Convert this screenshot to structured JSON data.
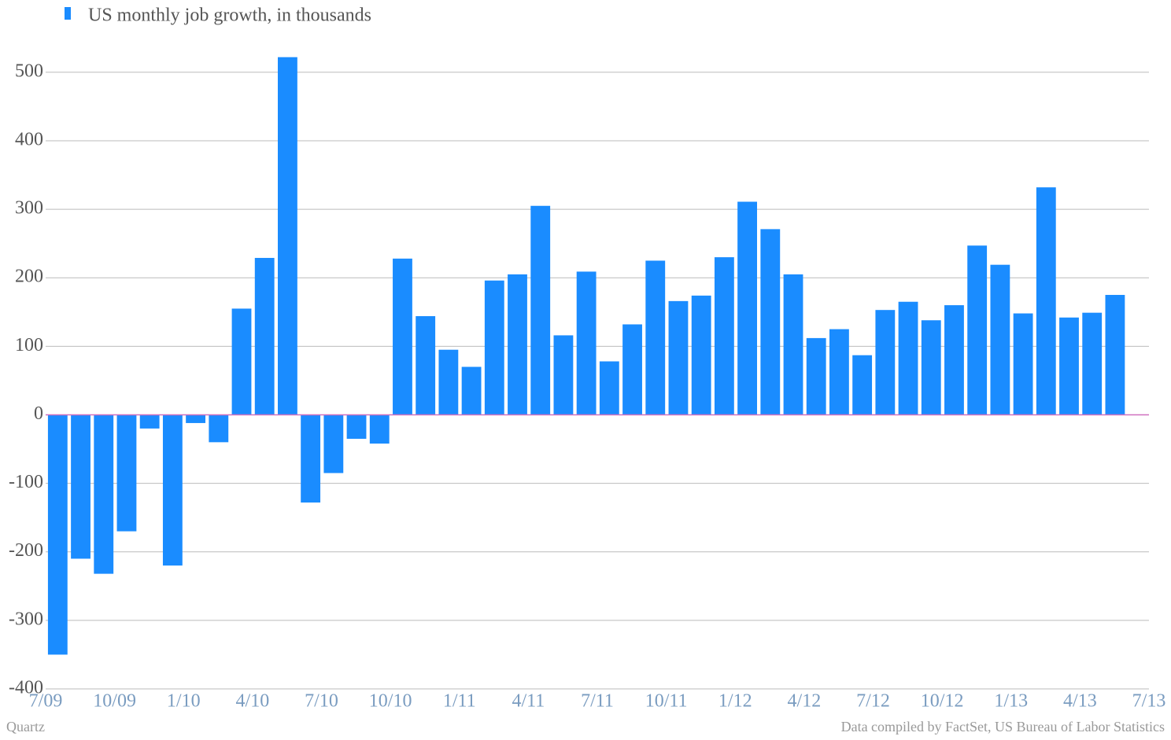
{
  "chart_data": {
    "type": "bar",
    "credit": "Quartz",
    "source": "Data compiled by FactSet, US Bureau of Labor Statistics",
    "x": [
      0,
      1,
      2,
      3,
      4,
      5,
      6,
      7,
      8,
      9,
      10,
      11,
      12,
      13,
      14,
      15,
      16,
      17,
      18,
      19,
      20,
      21,
      22,
      23,
      24,
      25,
      26,
      27,
      28,
      29,
      30,
      31,
      32,
      33,
      34,
      35,
      36,
      37,
      38,
      39,
      40,
      41,
      42,
      43,
      44,
      45,
      46
    ],
    "series": [
      {
        "name": "US monthly job growth, in thousands",
        "color": "#1a8cff",
        "values": [
          -350,
          -210,
          -232,
          -170,
          -20,
          -220,
          -12,
          -40,
          155,
          229,
          522,
          -128,
          -85,
          -35,
          -42,
          228,
          144,
          95,
          70,
          196,
          205,
          305,
          116,
          209,
          78,
          132,
          225,
          166,
          174,
          230,
          311,
          271,
          205,
          112,
          125,
          87,
          153,
          165,
          138,
          160,
          247,
          219,
          148,
          332,
          142,
          149,
          175
        ]
      }
    ],
    "xlim": [
      0,
      48
    ],
    "xticks": [
      {
        "value": 0,
        "label": "7/09"
      },
      {
        "value": 3,
        "label": "10/09"
      },
      {
        "value": 6,
        "label": "1/10"
      },
      {
        "value": 9,
        "label": "4/10"
      },
      {
        "value": 12,
        "label": "7/10"
      },
      {
        "value": 15,
        "label": "10/10"
      },
      {
        "value": 18,
        "label": "1/11"
      },
      {
        "value": 21,
        "label": "4/11"
      },
      {
        "value": 24,
        "label": "7/11"
      },
      {
        "value": 27,
        "label": "10/11"
      },
      {
        "value": 30,
        "label": "1/12"
      },
      {
        "value": 33,
        "label": "4/12"
      },
      {
        "value": 36,
        "label": "7/12"
      },
      {
        "value": 39,
        "label": "10/12"
      },
      {
        "value": 42,
        "label": "1/13"
      },
      {
        "value": 45,
        "label": "4/13"
      },
      {
        "value": 48,
        "label": "7/13"
      }
    ],
    "ylim": [
      -400,
      540
    ],
    "yticks": [
      -400,
      -300,
      -200,
      -100,
      0,
      100,
      200,
      300,
      400,
      500
    ],
    "grid": true
  }
}
